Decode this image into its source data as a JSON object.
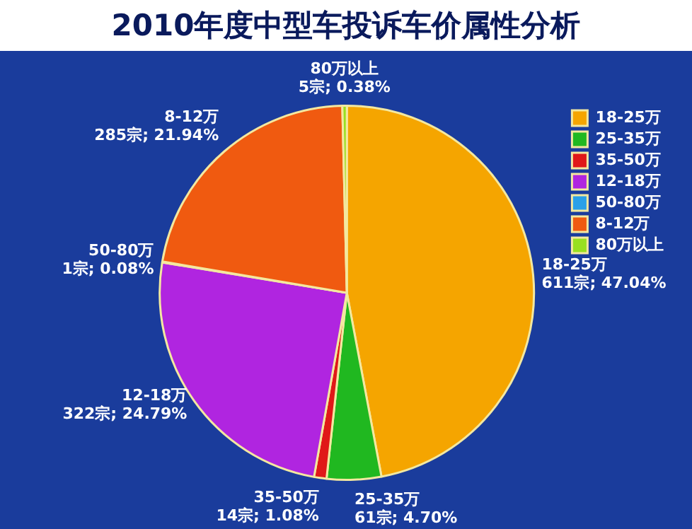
{
  "chart_data": {
    "type": "pie",
    "title": "2010年度中型车投诉车价属性分析",
    "categories": [
      "18-25万",
      "25-35万",
      "35-50万",
      "12-18万",
      "50-80万",
      "8-12万",
      "80万以上"
    ],
    "values": [
      611,
      61,
      14,
      322,
      1,
      285,
      5
    ],
    "value_labels": [
      "611宗; 47.04%",
      "61宗; 4.70%",
      "14宗; 1.08%",
      "322宗; 24.79%",
      "1宗; 0.08%",
      "285宗; 21.94%",
      "5宗; 0.38%"
    ],
    "colors": [
      "#f5a500",
      "#20b820",
      "#e01818",
      "#b025e0",
      "#2aa0e8",
      "#f05a10",
      "#98e020"
    ],
    "legend": "top right"
  }
}
